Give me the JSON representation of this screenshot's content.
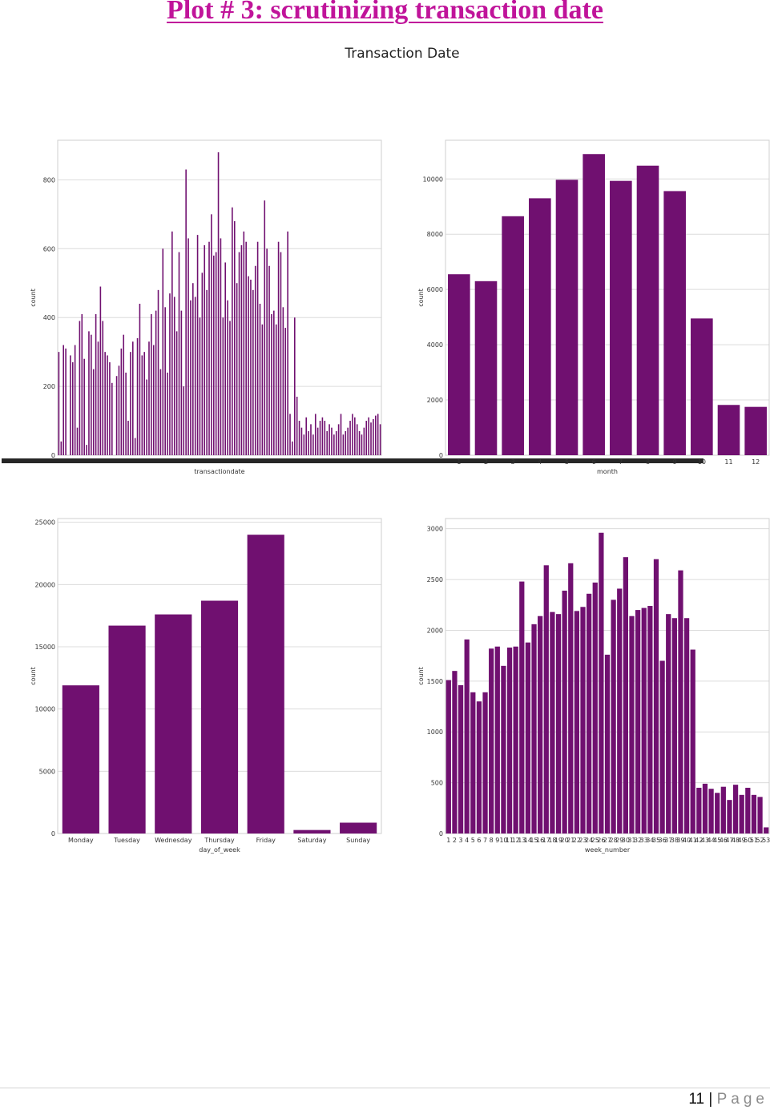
{
  "document": {
    "heading": "Plot # 3: scrutinizing transaction date",
    "page_number": "11",
    "page_separator": "|",
    "page_word": "Page"
  },
  "figure_title": "Transaction Date",
  "bar_color": "#701070",
  "chart_data": [
    {
      "id": "transactiondate",
      "type": "bar",
      "xlabel": "transactiondate",
      "ylabel": "count",
      "ylim": [
        0,
        915
      ],
      "yticks": [
        0,
        200,
        400,
        600,
        800
      ],
      "grid": true,
      "x_tick_labels_note": "dense overlapping date labels, unreadable",
      "values": [
        300,
        40,
        320,
        310,
        0,
        290,
        270,
        320,
        80,
        390,
        410,
        280,
        30,
        360,
        350,
        250,
        410,
        330,
        490,
        390,
        300,
        290,
        270,
        210,
        0,
        230,
        260,
        310,
        350,
        240,
        100,
        300,
        330,
        50,
        340,
        440,
        290,
        300,
        220,
        330,
        410,
        320,
        420,
        480,
        250,
        600,
        430,
        240,
        470,
        650,
        460,
        360,
        590,
        420,
        200,
        830,
        630,
        450,
        500,
        460,
        640,
        400,
        530,
        610,
        480,
        620,
        700,
        580,
        590,
        880,
        630,
        400,
        560,
        450,
        390,
        720,
        680,
        500,
        590,
        610,
        650,
        620,
        520,
        510,
        480,
        550,
        620,
        440,
        380,
        740,
        600,
        550,
        410,
        420,
        380,
        620,
        590,
        430,
        370,
        650,
        120,
        40,
        400,
        170,
        100,
        80,
        60,
        110,
        70,
        90,
        60,
        120,
        80,
        100,
        110,
        100,
        70,
        90,
        80,
        60,
        70,
        90,
        120,
        60,
        70,
        80,
        100,
        120,
        110,
        90,
        70,
        60,
        80,
        100,
        110,
        95,
        105,
        115,
        120,
        90
      ]
    },
    {
      "id": "month",
      "type": "bar",
      "xlabel": "month",
      "ylabel": "count",
      "ylim": [
        0,
        11400
      ],
      "yticks": [
        0,
        2000,
        4000,
        6000,
        8000,
        10000
      ],
      "grid": true,
      "categories": [
        "1",
        "2",
        "3",
        "4",
        "5",
        "6",
        "7",
        "8",
        "9",
        "10",
        "11",
        "12"
      ],
      "values": [
        6550,
        6300,
        8650,
        9300,
        9970,
        10900,
        9930,
        10480,
        9560,
        4950,
        1820,
        1750
      ]
    },
    {
      "id": "day_of_week",
      "type": "bar",
      "xlabel": "day_of_week",
      "ylabel": "count",
      "ylim": [
        0,
        25300
      ],
      "yticks": [
        0,
        5000,
        10000,
        15000,
        20000,
        25000
      ],
      "grid": true,
      "categories": [
        "Monday",
        "Tuesday",
        "Wednesday",
        "Thursday",
        "Friday",
        "Saturday",
        "Sunday"
      ],
      "values": [
        11900,
        16700,
        17600,
        18700,
        24000,
        280,
        870
      ]
    },
    {
      "id": "week_number",
      "type": "bar",
      "xlabel": "week_number",
      "ylabel": "count",
      "ylim": [
        0,
        3100
      ],
      "yticks": [
        0,
        500,
        1000,
        1500,
        2000,
        2500,
        3000
      ],
      "grid": true,
      "categories": [
        "1",
        "2",
        "3",
        "4",
        "5",
        "6",
        "7",
        "8",
        "9",
        "10",
        "11",
        "12",
        "13",
        "14",
        "15",
        "16",
        "17",
        "18",
        "19",
        "20",
        "21",
        "22",
        "23",
        "24",
        "25",
        "26",
        "27",
        "28",
        "29",
        "30",
        "31",
        "32",
        "33",
        "34",
        "35",
        "36",
        "37",
        "38",
        "39",
        "40",
        "41",
        "42",
        "43",
        "44",
        "45",
        "46",
        "47",
        "48",
        "49",
        "50",
        "51",
        "52",
        "53"
      ],
      "values": [
        1510,
        1600,
        1460,
        1910,
        1390,
        1300,
        1390,
        1820,
        1840,
        1650,
        1830,
        1840,
        2480,
        1880,
        2060,
        2140,
        2640,
        2180,
        2160,
        2390,
        2660,
        2190,
        2230,
        2360,
        2470,
        2960,
        1760,
        2300,
        2410,
        2720,
        2140,
        2200,
        2220,
        2240,
        2700,
        1700,
        2160,
        2120,
        2590,
        2120,
        1810,
        450,
        490,
        440,
        400,
        460,
        330,
        480,
        380,
        450,
        380,
        360,
        60
      ]
    }
  ]
}
